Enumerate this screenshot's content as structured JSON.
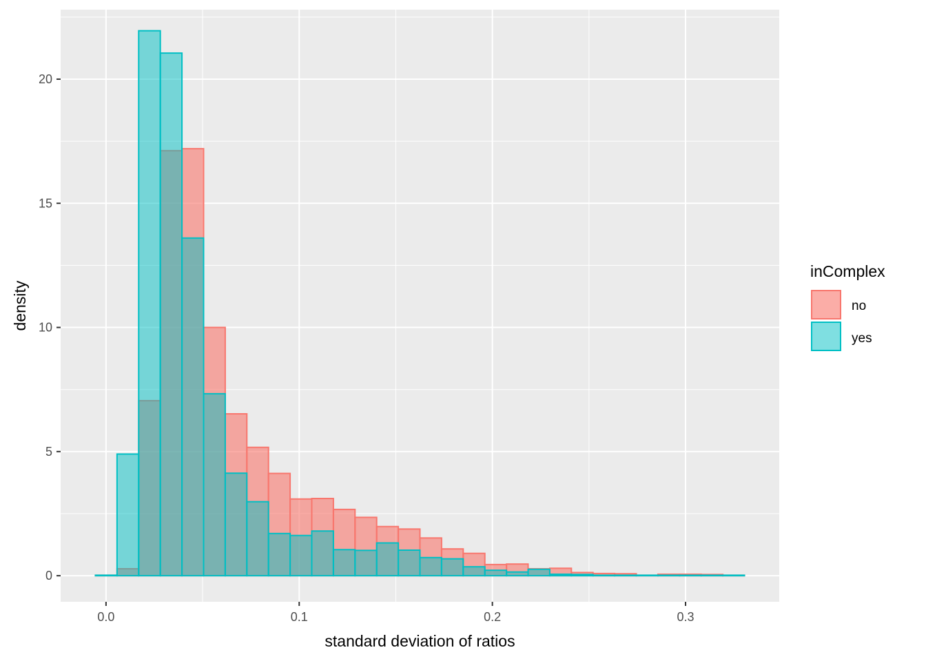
{
  "chart_data": {
    "type": "bar",
    "xlabel": "standard deviation of ratios",
    "ylabel": "density",
    "xlim": [
      -0.0235,
      0.3485
    ],
    "ylim": [
      -1.05,
      22.8
    ],
    "x_ticks": [
      0.0,
      0.1,
      0.2,
      0.3
    ],
    "x_tick_labels": [
      "0.0",
      "0.1",
      "0.2",
      "0.3"
    ],
    "y_ticks": [
      0,
      5,
      10,
      15,
      20
    ],
    "y_tick_labels": [
      "0",
      "5",
      "10",
      "15",
      "20"
    ],
    "grid": true,
    "legend": {
      "title": "inComplex",
      "position": "right"
    },
    "bin_edges": [
      -0.0055,
      0.0057,
      0.0169,
      0.0281,
      0.0393,
      0.0505,
      0.0617,
      0.0729,
      0.0841,
      0.0953,
      0.1065,
      0.1177,
      0.1289,
      0.1401,
      0.1513,
      0.1625,
      0.1737,
      0.1849,
      0.1961,
      0.2073,
      0.2185,
      0.2297,
      0.2409,
      0.2521,
      0.2633,
      0.2745,
      0.2857,
      0.2969,
      0.3081,
      0.3193,
      0.3305
    ],
    "series": [
      {
        "name": "no",
        "fill": "#F8766D",
        "values": [
          0.02,
          0.28,
          7.05,
          17.12,
          17.2,
          10.0,
          6.52,
          5.17,
          4.12,
          3.09,
          3.11,
          2.67,
          2.35,
          1.98,
          1.88,
          1.52,
          1.08,
          0.9,
          0.45,
          0.47,
          0.28,
          0.3,
          0.13,
          0.09,
          0.08,
          0.02,
          0.06,
          0.06,
          0.05,
          0.02
        ]
      },
      {
        "name": "yes",
        "fill": "#00BFC4",
        "values": [
          0.02,
          4.9,
          21.95,
          21.05,
          13.6,
          7.33,
          4.13,
          2.98,
          1.7,
          1.62,
          1.8,
          1.05,
          1.02,
          1.32,
          1.03,
          0.73,
          0.68,
          0.36,
          0.22,
          0.15,
          0.26,
          0.06,
          0.05,
          0.02,
          0.02,
          0.02,
          0.02,
          0.02,
          0.02,
          0.02
        ]
      }
    ]
  },
  "colors": {
    "panel_bg": "#EBEBEB",
    "grid": "#FFFFFF",
    "no_stroke": "#F8766D",
    "yes_stroke": "#00BFC4"
  }
}
